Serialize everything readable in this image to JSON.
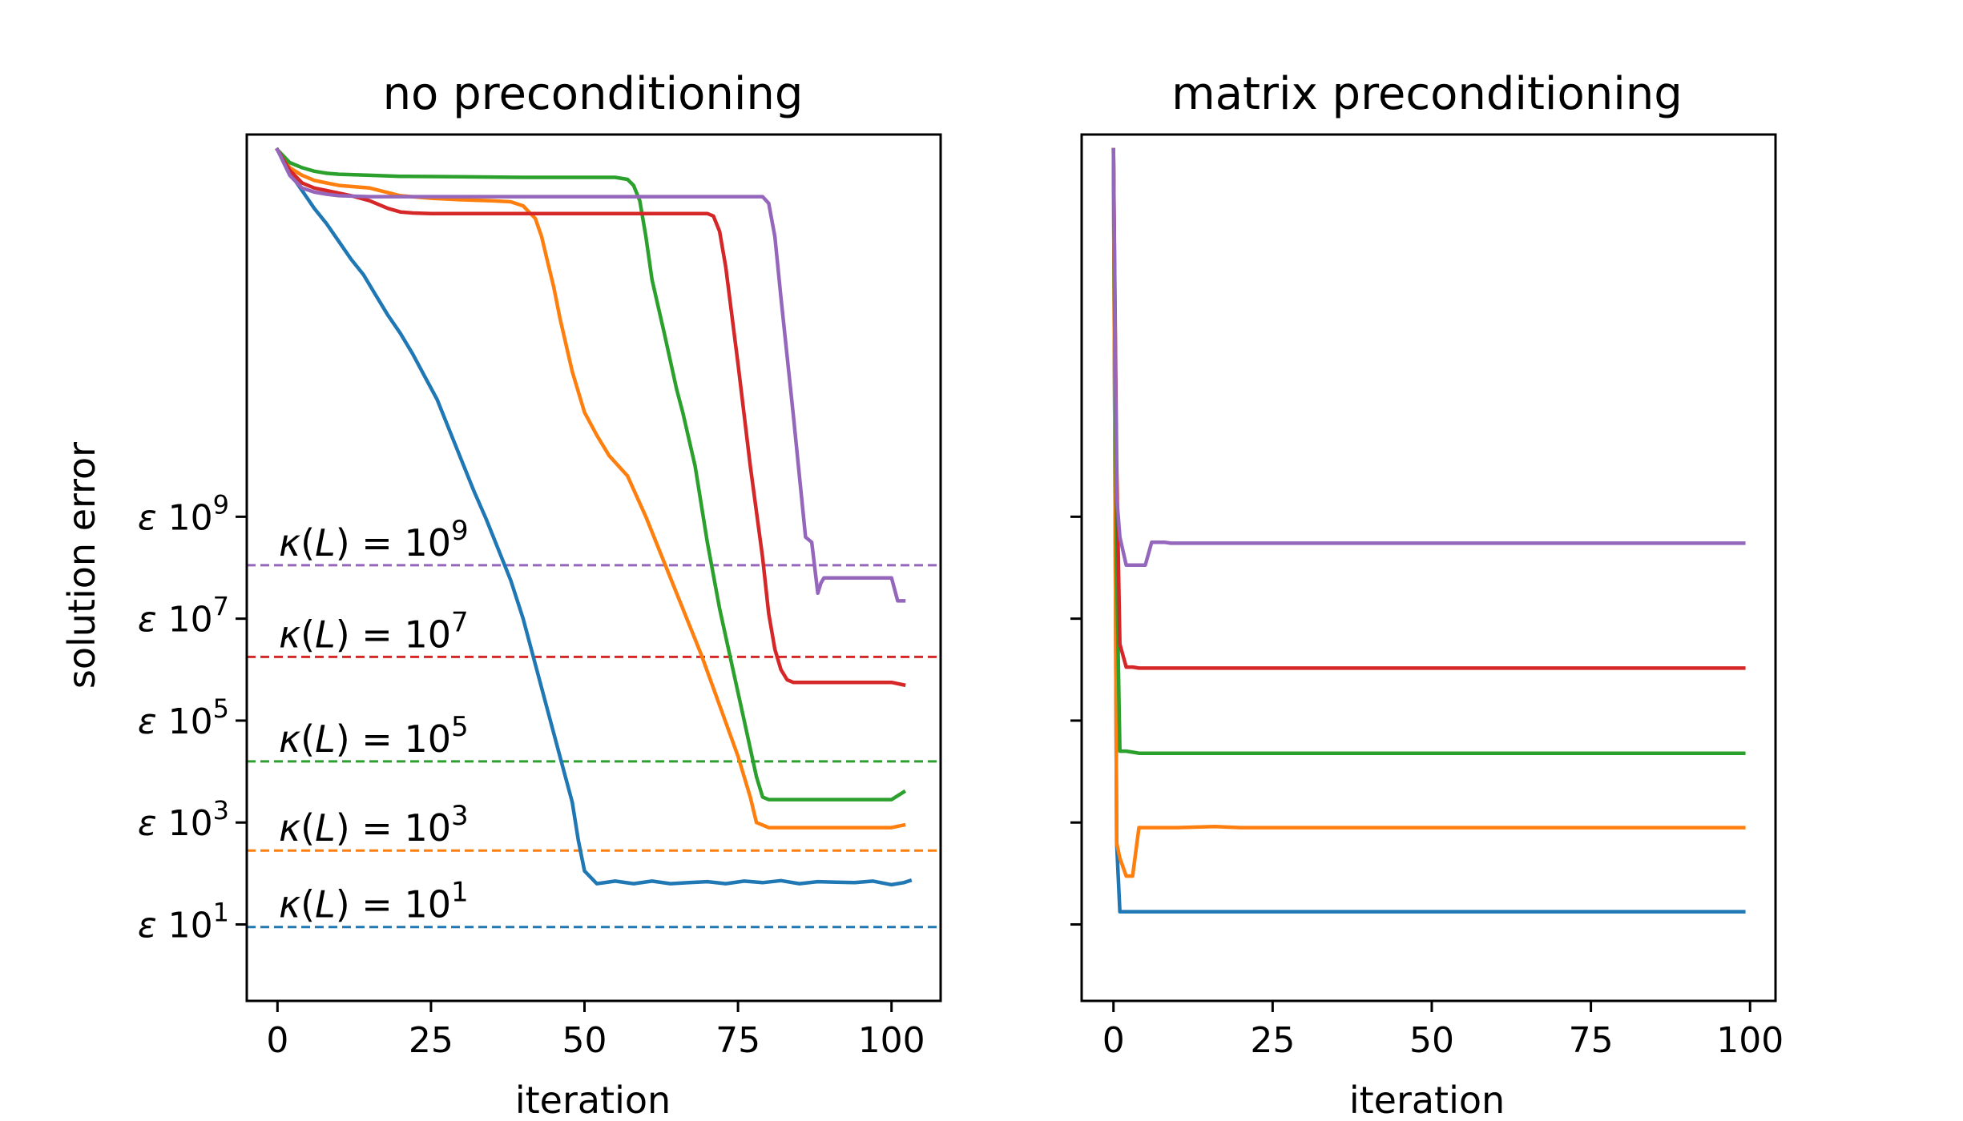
{
  "chart_data": [
    {
      "type": "line",
      "title": "no preconditioning",
      "xlabel": "iteration",
      "ylabel": "solution error",
      "xlim": [
        -5,
        108
      ],
      "ylim_log10": [
        -0.5,
        16.5
      ],
      "grid": false,
      "x_ticks": [
        0,
        25,
        50,
        75,
        100
      ],
      "y_ticks": [
        {
          "log10": 1,
          "prefix": "ε",
          "base": "10",
          "exp": "1"
        },
        {
          "log10": 3,
          "prefix": "ε",
          "base": "10",
          "exp": "3"
        },
        {
          "log10": 5,
          "prefix": "ε",
          "base": "10",
          "exp": "5"
        },
        {
          "log10": 7,
          "prefix": "ε",
          "base": "10",
          "exp": "7"
        },
        {
          "log10": 9,
          "prefix": "ε",
          "base": "10",
          "exp": "9"
        }
      ],
      "reference_lines": [
        {
          "name": "kappa-1",
          "label_prefix": "κ(L) = 10",
          "label_exp": "1",
          "log10": 0.95,
          "color": "#1f77b4"
        },
        {
          "name": "kappa-3",
          "label_prefix": "κ(L) = 10",
          "label_exp": "3",
          "log10": 2.45,
          "color": "#ff7f0e"
        },
        {
          "name": "kappa-5",
          "label_prefix": "κ(L) = 10",
          "label_exp": "5",
          "log10": 4.2,
          "color": "#2ca02c"
        },
        {
          "name": "kappa-7",
          "label_prefix": "κ(L) = 10",
          "label_exp": "7",
          "log10": 6.25,
          "color": "#d62728"
        },
        {
          "name": "kappa-9",
          "label_prefix": "κ(L) = 10",
          "label_exp": "9",
          "log10": 8.05,
          "color": "#9467bd"
        }
      ],
      "series": [
        {
          "name": "kappa-1",
          "color": "#1f77b4",
          "x": [
            0,
            2,
            4,
            6,
            8,
            10,
            12,
            14,
            16,
            18,
            20,
            22,
            24,
            26,
            28,
            30,
            32,
            34,
            36,
            38,
            40,
            42,
            44,
            46,
            48,
            49,
            50,
            52,
            55,
            58,
            61,
            64,
            67,
            70,
            73,
            76,
            79,
            82,
            85,
            88,
            91,
            94,
            97,
            100,
            102,
            103
          ],
          "y": [
            16.2,
            15.75,
            15.4,
            15.05,
            14.75,
            14.4,
            14.05,
            13.75,
            13.35,
            12.95,
            12.6,
            12.2,
            11.75,
            11.3,
            10.7,
            10.1,
            9.5,
            8.95,
            8.35,
            7.75,
            7.0,
            6.1,
            5.2,
            4.3,
            3.4,
            2.65,
            2.05,
            1.8,
            1.85,
            1.8,
            1.85,
            1.8,
            1.82,
            1.84,
            1.8,
            1.85,
            1.82,
            1.86,
            1.8,
            1.84,
            1.83,
            1.82,
            1.85,
            1.78,
            1.82,
            1.86
          ]
        },
        {
          "name": "kappa-3",
          "color": "#ff7f0e",
          "x": [
            0,
            2,
            4,
            6,
            8,
            10,
            15,
            20,
            25,
            30,
            35,
            38,
            40,
            42,
            43,
            44,
            45,
            46,
            48,
            50,
            52,
            54,
            57,
            60,
            63,
            66,
            69,
            72,
            75,
            77,
            78,
            80,
            85,
            90,
            95,
            100,
            102
          ],
          "y": [
            16.2,
            15.85,
            15.7,
            15.6,
            15.55,
            15.5,
            15.45,
            15.3,
            15.25,
            15.22,
            15.2,
            15.18,
            15.1,
            14.85,
            14.5,
            14.0,
            13.5,
            12.9,
            11.85,
            11.05,
            10.6,
            10.2,
            9.8,
            9.0,
            8.1,
            7.2,
            6.3,
            5.3,
            4.3,
            3.5,
            3.0,
            2.9,
            2.9,
            2.9,
            2.9,
            2.9,
            2.95
          ]
        },
        {
          "name": "kappa-5",
          "color": "#2ca02c",
          "x": [
            0,
            2,
            4,
            6,
            8,
            10,
            15,
            20,
            30,
            40,
            50,
            55,
            57,
            58,
            59,
            60,
            61,
            63,
            65,
            66,
            68,
            70,
            72,
            74,
            76,
            78,
            79,
            80,
            85,
            90,
            95,
            100,
            102
          ],
          "y": [
            16.2,
            15.95,
            15.85,
            15.78,
            15.74,
            15.72,
            15.7,
            15.68,
            15.67,
            15.66,
            15.66,
            15.66,
            15.62,
            15.5,
            15.2,
            14.5,
            13.65,
            12.6,
            11.5,
            11.05,
            10.0,
            8.5,
            7.2,
            6.1,
            5.0,
            3.9,
            3.5,
            3.45,
            3.45,
            3.45,
            3.45,
            3.45,
            3.6
          ]
        },
        {
          "name": "kappa-7",
          "color": "#d62728",
          "x": [
            0,
            2,
            4,
            6,
            8,
            10,
            12,
            15,
            18,
            20,
            22,
            25,
            30,
            40,
            50,
            60,
            70,
            71,
            72,
            73,
            75,
            77,
            79,
            80,
            81,
            82,
            83,
            84,
            90,
            95,
            100,
            102
          ],
          "y": [
            16.2,
            15.8,
            15.55,
            15.45,
            15.4,
            15.35,
            15.3,
            15.2,
            15.05,
            14.98,
            14.96,
            14.95,
            14.95,
            14.95,
            14.95,
            14.95,
            14.95,
            14.9,
            14.6,
            13.9,
            12.0,
            10.0,
            8.2,
            7.1,
            6.4,
            6.0,
            5.8,
            5.75,
            5.75,
            5.75,
            5.75,
            5.7
          ]
        },
        {
          "name": "kappa-9",
          "color": "#9467bd",
          "x": [
            0,
            2,
            4,
            6,
            8,
            10,
            15,
            20,
            30,
            40,
            50,
            60,
            70,
            75,
            78,
            79,
            80,
            81,
            82,
            84,
            86,
            87,
            88,
            88.5,
            89,
            90,
            95,
            100,
            101,
            102
          ],
          "y": [
            16.2,
            15.7,
            15.45,
            15.37,
            15.33,
            15.3,
            15.28,
            15.28,
            15.28,
            15.28,
            15.28,
            15.28,
            15.28,
            15.28,
            15.28,
            15.28,
            15.15,
            14.5,
            13.3,
            11.0,
            8.6,
            8.5,
            7.5,
            7.7,
            7.8,
            7.8,
            7.8,
            7.8,
            7.35,
            7.35
          ]
        }
      ]
    },
    {
      "type": "line",
      "title": "matrix preconditioning",
      "xlabel": "iteration",
      "ylabel": "",
      "xlim": [
        -5,
        104
      ],
      "ylim_log10": [
        -0.5,
        16.5
      ],
      "grid": false,
      "x_ticks": [
        0,
        25,
        50,
        75,
        100
      ],
      "y_ticks": [
        1,
        3,
        5,
        7,
        9
      ],
      "series": [
        {
          "name": "kappa-1",
          "color": "#1f77b4",
          "x": [
            0,
            0.5,
            1,
            2,
            10,
            50,
            99
          ],
          "y": [
            16.2,
            2.6,
            1.25,
            1.25,
            1.25,
            1.25,
            1.25
          ]
        },
        {
          "name": "kappa-3",
          "color": "#ff7f0e",
          "x": [
            0,
            0.5,
            1,
            2,
            3,
            4,
            10,
            16,
            20,
            50,
            99
          ],
          "y": [
            16.2,
            2.6,
            2.3,
            1.95,
            1.95,
            2.9,
            2.9,
            2.92,
            2.9,
            2.9,
            2.9
          ]
        },
        {
          "name": "kappa-5",
          "color": "#2ca02c",
          "x": [
            0,
            0.5,
            1,
            2,
            3,
            4,
            10,
            50,
            99
          ],
          "y": [
            16.2,
            8.0,
            4.4,
            4.4,
            4.38,
            4.36,
            4.36,
            4.36,
            4.36
          ]
        },
        {
          "name": "kappa-7",
          "color": "#d62728",
          "x": [
            0,
            0.5,
            1,
            2,
            3,
            4,
            10,
            50,
            99
          ],
          "y": [
            16.2,
            10.0,
            6.5,
            6.05,
            6.05,
            6.03,
            6.03,
            6.03,
            6.03
          ]
        },
        {
          "name": "kappa-9",
          "color": "#9467bd",
          "x": [
            0,
            0.5,
            1,
            2,
            3,
            4,
            5,
            6,
            7,
            8,
            9,
            10,
            50,
            99
          ],
          "y": [
            16.2,
            9.4,
            8.6,
            8.05,
            8.05,
            8.05,
            8.05,
            8.5,
            8.5,
            8.5,
            8.48,
            8.48,
            8.48,
            8.48
          ]
        }
      ]
    }
  ]
}
